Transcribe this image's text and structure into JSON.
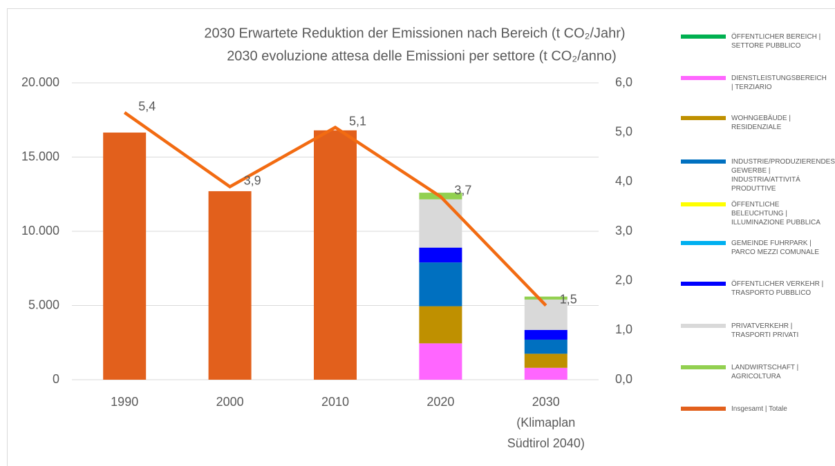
{
  "chart_data": {
    "type": "bar",
    "stacked": true,
    "title": [
      "2030 Erwartete Reduktion der Emissionen nach Bereich (t CO₂/Jahr)",
      "2030 evoluzione attesa delle Emissioni per settore (t CO₂/anno)"
    ],
    "categories": [
      "1990",
      "2000",
      "2010",
      "2020",
      "2030\n(Klimaplan\nSüdtirol 2040)"
    ],
    "ylim": [
      0,
      20000
    ],
    "yticks": [
      0,
      {
        "value": 5000,
        "label": "5.000"
      },
      {
        "value": 10000,
        "label": "10.000"
      },
      {
        "value": 15000,
        "label": "15.000"
      },
      {
        "value": 20000,
        "label": "20.000"
      }
    ],
    "y2lim": [
      0,
      6
    ],
    "y2ticks": [
      {
        "value": 0,
        "label": "0,0"
      },
      {
        "value": 1,
        "label": "1,0"
      },
      {
        "value": 2,
        "label": "2,0"
      },
      {
        "value": 3,
        "label": "3,0"
      },
      {
        "value": 4,
        "label": "4,0"
      },
      {
        "value": 5,
        "label": "5,0"
      },
      {
        "value": 6,
        "label": "6,0"
      }
    ],
    "grid": true,
    "legend": "right",
    "series": [
      {
        "name": "ÖFFENTLICHER BEREICH | SETTORE PUBBLICO",
        "color": "#00b050",
        "values": [
          null,
          null,
          null,
          0,
          0
        ]
      },
      {
        "name": "DIENSTLEISTUNGSBEREICH | TERZIARIO",
        "color": "#ff66ff",
        "values": [
          null,
          null,
          null,
          2450,
          800
        ]
      },
      {
        "name": "WOHNGEBÄUDE | RESIDENZIALE",
        "color": "#bf9000",
        "values": [
          null,
          null,
          null,
          2500,
          950
        ]
      },
      {
        "name": "INDUSTRIE/PRODUZIERENDES GEWERBE | INDUSTRIA/ATTIVITÁ PRODUTTIVE",
        "color": "#0070c0",
        "values": [
          null,
          null,
          null,
          2950,
          950
        ]
      },
      {
        "name": "ÖFFENTLICHE BELEUCHTUNG | ILLUMINAZIONE PUBBLICA",
        "color": "#ffff00",
        "values": [
          null,
          null,
          null,
          0,
          0
        ]
      },
      {
        "name": "GEMEINDE FUHRPARK | PARCO MEZZI COMUNALE",
        "color": "#00b0f0",
        "values": [
          null,
          null,
          null,
          0,
          0
        ]
      },
      {
        "name": "ÖFFENTLICHER VERKEHR | TRASPORTO PUBBLICO",
        "color": "#0000ff",
        "values": [
          null,
          null,
          null,
          1000,
          650
        ]
      },
      {
        "name": "PRIVATVERKEHR | TRASPORTI PRIVATI",
        "color": "#d9d9d9",
        "values": [
          null,
          null,
          null,
          3250,
          2050
        ]
      },
      {
        "name": "LANDWIRTSCHAFT | AGRICOLTURA",
        "color": "#92d050",
        "values": [
          null,
          null,
          null,
          450,
          200
        ]
      },
      {
        "name": "Insgesamt | Totale",
        "color": "#e2601c",
        "values": [
          16650,
          12700,
          16800,
          null,
          null
        ]
      },
      {
        "type": "line",
        "axis": "y2",
        "color": "#f26b12",
        "values": [
          5.4,
          3.9,
          5.1,
          3.7,
          1.5
        ],
        "value_labels": [
          "5,4",
          "3,9",
          "5,1",
          "3,7",
          "1,5"
        ]
      }
    ]
  }
}
